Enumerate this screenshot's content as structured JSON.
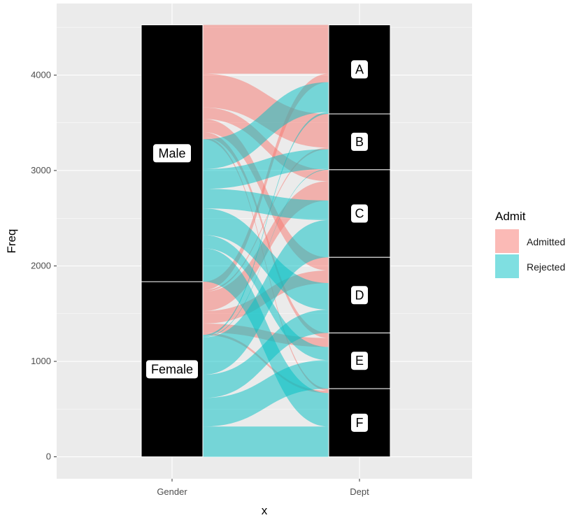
{
  "colors": {
    "panel": "#ebebeb",
    "grid_major": "#ffffff",
    "stratum_fill": "#000000",
    "admitted": "#f8766d",
    "rejected": "#00bfc4"
  },
  "chart_data": {
    "type": "alluvial",
    "xlabel": "x",
    "ylabel": "Freq",
    "x_axes": [
      "Gender",
      "Dept"
    ],
    "ylim": [
      -230,
      4750
    ],
    "yticks": [
      0,
      1000,
      2000,
      3000,
      4000
    ],
    "ytick_labels": [
      "0",
      "1000",
      "2000",
      "3000",
      "4000"
    ],
    "grid": true,
    "legend": {
      "title": "Admit",
      "position": "right",
      "entries": [
        {
          "label": "Admitted",
          "color": "#f8766d"
        },
        {
          "label": "Rejected",
          "color": "#00bfc4"
        }
      ]
    },
    "strata": {
      "Gender": [
        "Male",
        "Female"
      ],
      "Dept": [
        "A",
        "B",
        "C",
        "D",
        "E",
        "F"
      ]
    },
    "series": [
      {
        "admit": "Admitted",
        "gender": "Male",
        "dept": "A",
        "freq": 512
      },
      {
        "admit": "Admitted",
        "gender": "Male",
        "dept": "B",
        "freq": 353
      },
      {
        "admit": "Admitted",
        "gender": "Male",
        "dept": "C",
        "freq": 120
      },
      {
        "admit": "Admitted",
        "gender": "Male",
        "dept": "D",
        "freq": 138
      },
      {
        "admit": "Admitted",
        "gender": "Male",
        "dept": "E",
        "freq": 53
      },
      {
        "admit": "Admitted",
        "gender": "Male",
        "dept": "F",
        "freq": 22
      },
      {
        "admit": "Admitted",
        "gender": "Female",
        "dept": "A",
        "freq": 89
      },
      {
        "admit": "Admitted",
        "gender": "Female",
        "dept": "B",
        "freq": 17
      },
      {
        "admit": "Admitted",
        "gender": "Female",
        "dept": "C",
        "freq": 202
      },
      {
        "admit": "Admitted",
        "gender": "Female",
        "dept": "D",
        "freq": 131
      },
      {
        "admit": "Admitted",
        "gender": "Female",
        "dept": "E",
        "freq": 94
      },
      {
        "admit": "Admitted",
        "gender": "Female",
        "dept": "F",
        "freq": 24
      },
      {
        "admit": "Rejected",
        "gender": "Male",
        "dept": "A",
        "freq": 313
      },
      {
        "admit": "Rejected",
        "gender": "Male",
        "dept": "B",
        "freq": 207
      },
      {
        "admit": "Rejected",
        "gender": "Male",
        "dept": "C",
        "freq": 205
      },
      {
        "admit": "Rejected",
        "gender": "Male",
        "dept": "D",
        "freq": 279
      },
      {
        "admit": "Rejected",
        "gender": "Male",
        "dept": "E",
        "freq": 138
      },
      {
        "admit": "Rejected",
        "gender": "Male",
        "dept": "F",
        "freq": 351
      },
      {
        "admit": "Rejected",
        "gender": "Female",
        "dept": "A",
        "freq": 19
      },
      {
        "admit": "Rejected",
        "gender": "Female",
        "dept": "B",
        "freq": 8
      },
      {
        "admit": "Rejected",
        "gender": "Female",
        "dept": "C",
        "freq": 391
      },
      {
        "admit": "Rejected",
        "gender": "Female",
        "dept": "D",
        "freq": 244
      },
      {
        "admit": "Rejected",
        "gender": "Female",
        "dept": "E",
        "freq": 299
      },
      {
        "admit": "Rejected",
        "gender": "Female",
        "dept": "F",
        "freq": 317
      }
    ]
  }
}
